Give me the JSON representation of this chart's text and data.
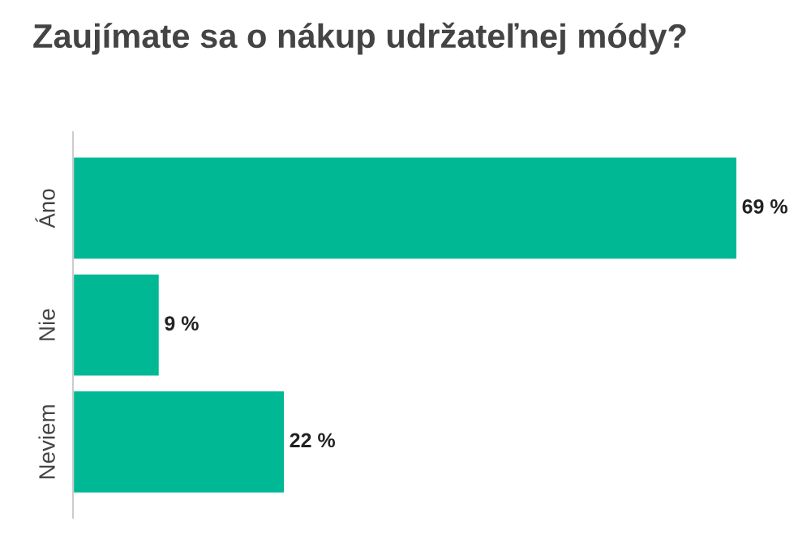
{
  "chart_data": {
    "type": "bar",
    "orientation": "horizontal",
    "title": "Zaujímate sa o nákup udržateľnej módy?",
    "categories": [
      "Áno",
      "Nie",
      "Neviem"
    ],
    "values": [
      69,
      9,
      22
    ],
    "value_labels": [
      "69 %",
      "9 %",
      "22 %"
    ],
    "color": "#00b894",
    "tick_labels": "y",
    "grid": false,
    "legend": false
  }
}
